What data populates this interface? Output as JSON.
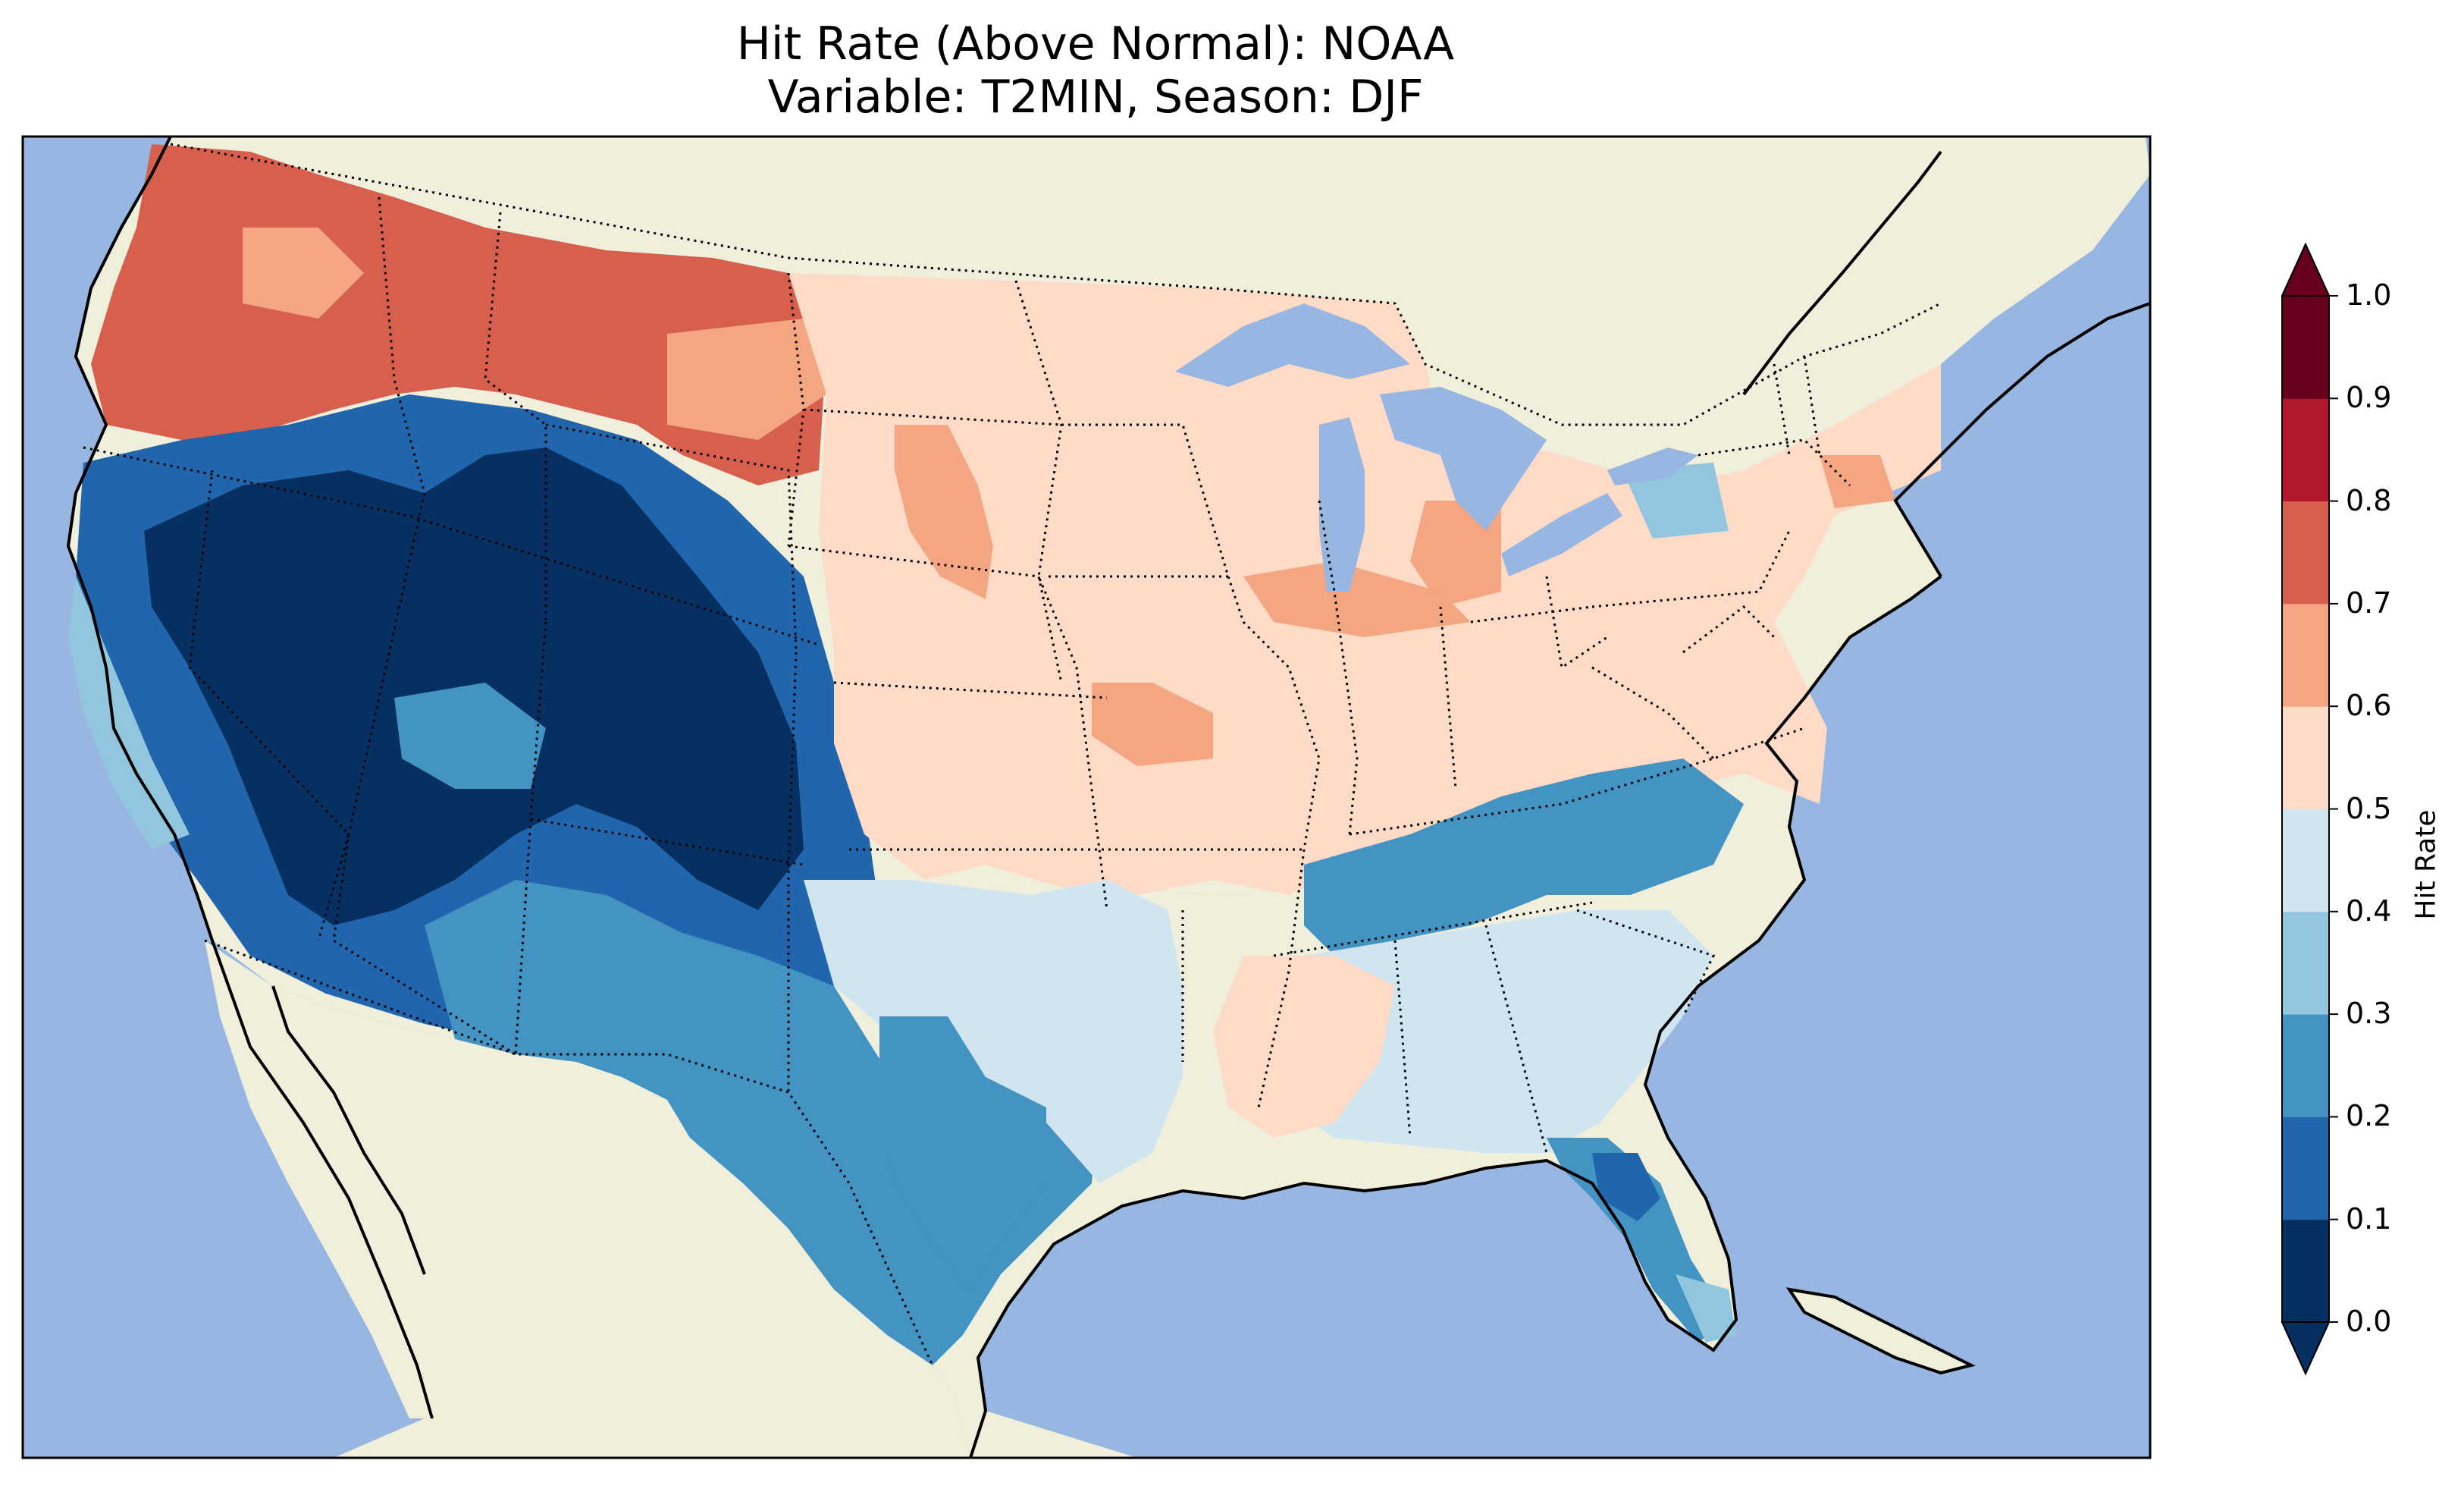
{
  "figure": {
    "title_line1": "Hit Rate (Above Normal): NOAA",
    "title_line2": "Variable: T2MIN, Season: DJF"
  },
  "map": {
    "region": "contiguous United States",
    "ocean_color": "#97b6e1",
    "land_color": "#efefdb",
    "coastline_color": "#000000",
    "state_border_style": "dotted",
    "regions": [
      {
        "name": "pacific-northwest",
        "category": "0.7-0.8"
      },
      {
        "name": "northern-rockies",
        "category": "0.7-0.8"
      },
      {
        "name": "great-basin",
        "category": "0.0-0.1"
      },
      {
        "name": "southern-rockies",
        "category": "0.0-0.1"
      },
      {
        "name": "southwest",
        "category": "0.2-0.3"
      },
      {
        "name": "texas",
        "category": "0.2-0.3"
      },
      {
        "name": "northern-plains",
        "category": "0.5-0.6"
      },
      {
        "name": "midwest",
        "category": "0.5-0.6"
      },
      {
        "name": "tennessee-valley",
        "category": "0.2-0.3"
      },
      {
        "name": "southeast",
        "category": "0.4-0.5"
      },
      {
        "name": "florida",
        "category": "0.2-0.3"
      },
      {
        "name": "northeast",
        "category": "0.5-0.6"
      }
    ]
  },
  "colorbar": {
    "label": "Hit Rate",
    "ticks": [
      "0.0",
      "0.1",
      "0.2",
      "0.3",
      "0.4",
      "0.5",
      "0.6",
      "0.7",
      "0.8",
      "0.9",
      "1.0"
    ],
    "colors": [
      "#053061",
      "#2166ac",
      "#4393c3",
      "#92c5de",
      "#d1e5f0",
      "#fddbc7",
      "#f4a582",
      "#d6604d",
      "#b2182b",
      "#67001f"
    ],
    "under_color": "#053061",
    "over_color": "#67001f",
    "extend": "both"
  }
}
